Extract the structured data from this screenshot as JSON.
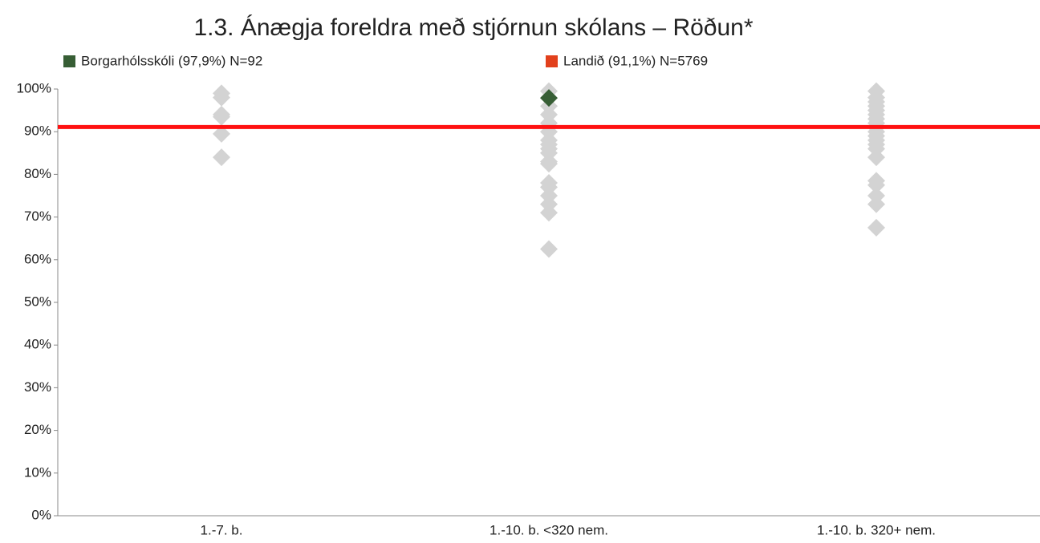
{
  "chart_data": {
    "type": "scatter",
    "title": "1.3. Ánægja foreldra með stjórnun skólans – Röðun*",
    "categories": [
      "1.-7. b.",
      "1.-10. b. <320 nem.",
      "1.-10. b. 320+ nem."
    ],
    "ylim": [
      0,
      100
    ],
    "yticks": [
      {
        "value": 0,
        "label": "0%"
      },
      {
        "value": 10,
        "label": "10%"
      },
      {
        "value": 20,
        "label": "20%"
      },
      {
        "value": 30,
        "label": "30%"
      },
      {
        "value": 40,
        "label": "40%"
      },
      {
        "value": 50,
        "label": "50%"
      },
      {
        "value": 60,
        "label": "60%"
      },
      {
        "value": 70,
        "label": "70%"
      },
      {
        "value": 80,
        "label": "80%"
      },
      {
        "value": 90,
        "label": "90%"
      },
      {
        "value": 100,
        "label": "100%"
      }
    ],
    "others": {
      "color": "#d3d3d3",
      "values": [
        [
          99,
          98,
          94,
          93.5,
          89.5,
          84
        ],
        [
          99.5,
          96,
          94,
          92,
          90,
          88,
          87,
          86,
          85,
          83,
          82.5,
          78,
          77,
          75,
          73,
          71,
          62.5
        ],
        [
          99.5,
          98,
          97,
          96,
          95,
          94,
          93,
          92,
          91,
          90,
          89,
          88,
          87,
          86,
          84,
          78.5,
          77.5,
          75,
          73,
          67.5
        ]
      ]
    },
    "school": {
      "name": "Borgarhólsskóli (97,9%) N=92",
      "color": "#375e35",
      "values": [
        null,
        97.9,
        null
      ]
    },
    "reference": {
      "name": "Landið (91,1%) N=5769",
      "color": "#e2401c",
      "line_color": "#ff1010",
      "value": 91.1
    }
  }
}
